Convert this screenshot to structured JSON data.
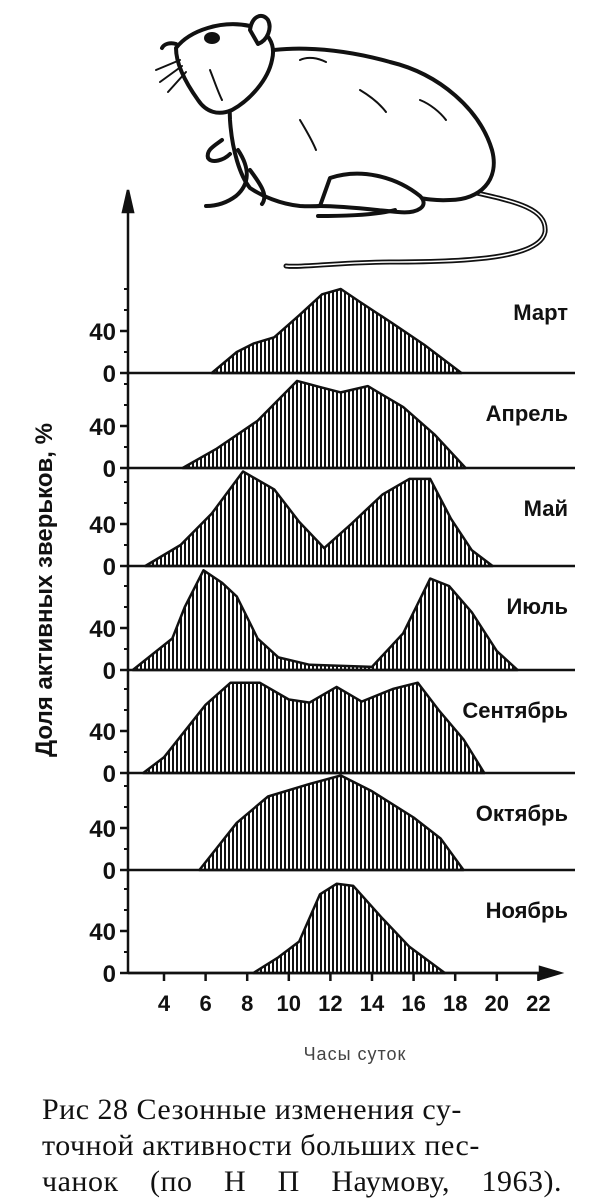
{
  "chart_data": {
    "type": "area",
    "ylabel": "Доля активных зверьков, %",
    "xlabel": "Часы суток",
    "x_ticks": [
      4,
      6,
      8,
      10,
      12,
      14,
      16,
      18,
      20,
      22
    ],
    "y_ticks": [
      0,
      40
    ],
    "xlim": [
      2,
      23
    ],
    "ylim": [
      0,
      100
    ],
    "series": [
      {
        "name": "Март",
        "points": [
          [
            6.3,
            0
          ],
          [
            7.5,
            20
          ],
          [
            8.3,
            28
          ],
          [
            9.3,
            34
          ],
          [
            10.5,
            55
          ],
          [
            11.6,
            75
          ],
          [
            12.5,
            80
          ],
          [
            13.4,
            68
          ],
          [
            15,
            47
          ],
          [
            16.5,
            27
          ],
          [
            18.3,
            0
          ]
        ]
      },
      {
        "name": "Апрель",
        "points": [
          [
            4.9,
            0
          ],
          [
            6.5,
            18
          ],
          [
            8.5,
            45
          ],
          [
            10.4,
            83
          ],
          [
            11.5,
            77
          ],
          [
            12.5,
            72
          ],
          [
            13.8,
            78
          ],
          [
            15.5,
            58
          ],
          [
            17,
            32
          ],
          [
            18.5,
            0
          ]
        ]
      },
      {
        "name": "Май",
        "points": [
          [
            3.1,
            0
          ],
          [
            4.8,
            20
          ],
          [
            6.3,
            50
          ],
          [
            7.8,
            90
          ],
          [
            9.3,
            73
          ],
          [
            10.5,
            42
          ],
          [
            11.7,
            17
          ],
          [
            13,
            40
          ],
          [
            14.5,
            68
          ],
          [
            15.8,
            83
          ],
          [
            16.8,
            83
          ],
          [
            17.8,
            45
          ],
          [
            18.8,
            15
          ],
          [
            19.8,
            0
          ]
        ]
      },
      {
        "name": "Июль",
        "points": [
          [
            2.5,
            0
          ],
          [
            4.4,
            30
          ],
          [
            5,
            60
          ],
          [
            5.9,
            95
          ],
          [
            6.8,
            83
          ],
          [
            7.5,
            70
          ],
          [
            8.5,
            30
          ],
          [
            9.5,
            12
          ],
          [
            11,
            5
          ],
          [
            14,
            3
          ],
          [
            15.5,
            35
          ],
          [
            16.8,
            87
          ],
          [
            17.7,
            80
          ],
          [
            18.8,
            55
          ],
          [
            20,
            18
          ],
          [
            21,
            0
          ]
        ]
      },
      {
        "name": "Сентябрь",
        "points": [
          [
            3,
            0
          ],
          [
            4,
            15
          ],
          [
            6,
            65
          ],
          [
            7.2,
            86
          ],
          [
            8.6,
            86
          ],
          [
            10,
            70
          ],
          [
            11,
            67
          ],
          [
            12.3,
            82
          ],
          [
            13.5,
            68
          ],
          [
            15,
            80
          ],
          [
            16.2,
            86
          ],
          [
            17.2,
            60
          ],
          [
            18.4,
            32
          ],
          [
            19.4,
            0
          ]
        ]
      },
      {
        "name": "Октябрь",
        "points": [
          [
            5.7,
            0
          ],
          [
            7.5,
            45
          ],
          [
            9,
            70
          ],
          [
            11,
            82
          ],
          [
            12.5,
            90
          ],
          [
            14,
            75
          ],
          [
            16,
            50
          ],
          [
            17.3,
            30
          ],
          [
            18.4,
            0
          ]
        ]
      },
      {
        "name": "Ноябрь",
        "points": [
          [
            8.3,
            0
          ],
          [
            9.5,
            15
          ],
          [
            10.5,
            30
          ],
          [
            11.5,
            75
          ],
          [
            12.3,
            85
          ],
          [
            13.1,
            83
          ],
          [
            14.5,
            52
          ],
          [
            15.8,
            25
          ],
          [
            17.5,
            0
          ]
        ]
      }
    ]
  },
  "caption": {
    "line1": "Рис 28 Сезонные изменения су-",
    "line2": "точной активности больших пес-",
    "line3": "чанок (по Н П Наумову, 1963)."
  },
  "illustration": {
    "name": "gerbil-illustration"
  }
}
